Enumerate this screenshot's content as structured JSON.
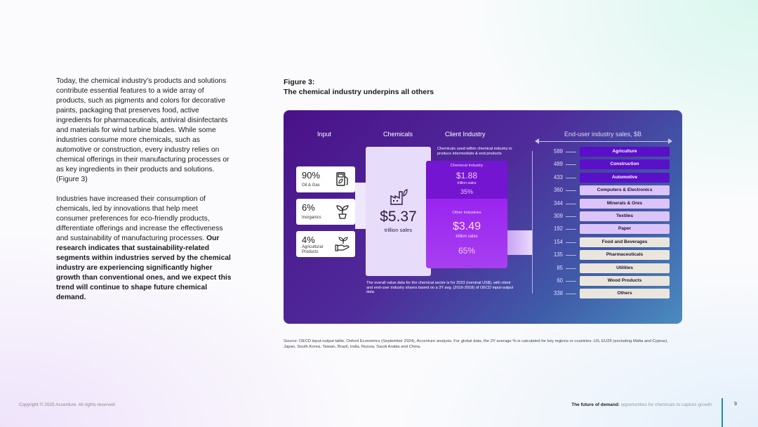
{
  "body": {
    "p1": "Today, the chemical industry’s products and solutions contribute essential features to a wide array of products, such as pigments and colors for decorative paints, packaging that preserves food, active ingredients for pharmaceuticals, antiviral disinfectants and materials for wind turbine blades. While some industries consume more chemicals, such as automotive or construction, every industry relies on chemical offerings in their manufacturing processes or as key ingredients in their products and solutions. (Figure 3)",
    "p2_regular": "Industries have increased their consumption of chemicals, led by innovations that help meet consumer preferences for eco-friendly products, differentiate offerings and increase the effectiveness and sustainability of manufacturing processes.",
    "p2_bold": "Our research indicates that sustainability-related segments within industries served by the chemical industry are experiencing significantly higher growth than conventional ones, and we expect this trend will continue to shape future chemical demand."
  },
  "figure": {
    "label": "Figure 3:",
    "title": "The chemical industry underpins all others"
  },
  "diagram": {
    "headers": {
      "input": "Input",
      "chemicals": "Chemicals",
      "client": "Client Industry",
      "enduser": "End-user industry sales, $B"
    },
    "inputs": [
      {
        "pct": "90%",
        "label": "Oil & Gas",
        "icon": "fuel-pump-leaf-icon"
      },
      {
        "pct": "6%",
        "label": "Inorganics",
        "icon": "plant-pot-icon"
      },
      {
        "pct": "4%",
        "label": "Agricultural Products",
        "icon": "hand-plant-icon"
      }
    ],
    "chemicals": {
      "icon": "factory-leaf-icon",
      "value": "$5.37",
      "unit": "trillion sales",
      "note": "The overall value data for the chemical sector is for 2023 (nominal US$), with client and end-user industry shares based on a 3Y avg. (2016-2018) of OECD input-output data."
    },
    "client": {
      "note": "Chemicals used within chemical industry to produce intermediate & end products",
      "chemical_industry": {
        "title": "Chemical Industry",
        "value": "$1.88",
        "unit": "trillion sales",
        "pct": "35%"
      },
      "other_industries": {
        "title": "Other Industries",
        "value": "$3.49",
        "unit": "trillion sales",
        "pct": "65%"
      }
    },
    "enduser": [
      {
        "value": "589",
        "label": "Agriculture",
        "color": "#5a0fc8"
      },
      {
        "value": "489",
        "label": "Construction",
        "color": "#5a0fc8"
      },
      {
        "value": "433",
        "label": "Automotive",
        "color": "#5a0fc8"
      },
      {
        "value": "360",
        "label": "Computers & Electronics",
        "color": "#dcc4fa"
      },
      {
        "value": "344",
        "label": "Minerals & Ores",
        "color": "#dcc4fa"
      },
      {
        "value": "309",
        "label": "Textiles",
        "color": "#dcc4fa"
      },
      {
        "value": "192",
        "label": "Paper",
        "color": "#dcc4fa"
      },
      {
        "value": "154",
        "label": "Food and Beverages",
        "color": "#ebe6dd"
      },
      {
        "value": "135",
        "label": "Pharmaceuticals",
        "color": "#ebe6dd"
      },
      {
        "value": "85",
        "label": "Utilities",
        "color": "#ebe6dd"
      },
      {
        "value": "60",
        "label": "Wood Products",
        "color": "#ebe6dd"
      },
      {
        "value": "338",
        "label": "Others",
        "color": "#ebe6dd"
      }
    ]
  },
  "source": "Source: OECD input-output table, Oxford Economics (September 2024), Accenture analysis. For global data, the 3Y average % is calculated for key regions or countries: US, EU25 (excluding Malta and Cyprus), Japan, South Korea, Taiwan, Brazil, India, Russia, Saudi Arabia and China.",
  "footer": {
    "copyright": "Copyright © 2025 Accenture. All rights reserved.",
    "title_bold": "The future of demand:",
    "title_rest": " opportunities for chemicals to capture growth",
    "page": "9"
  }
}
